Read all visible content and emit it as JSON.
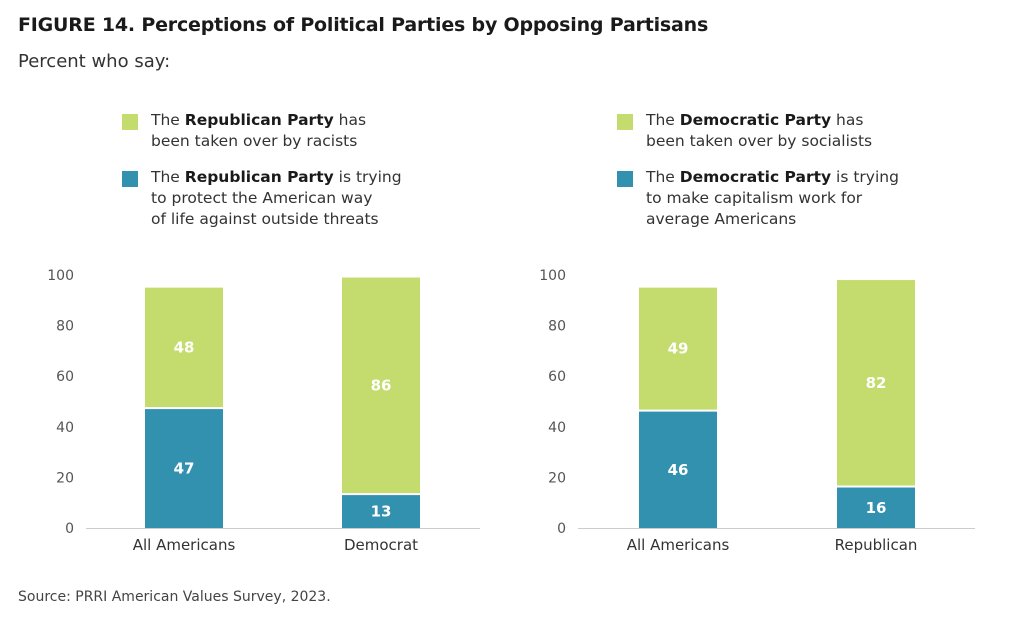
{
  "figure": {
    "title": "FIGURE 14.  Perceptions of Political Parties by Opposing Partisans",
    "subtitle": "Percent who say:",
    "source": "Source: PRRI American Values Survey, 2023."
  },
  "colors": {
    "green": "#c4db6d",
    "blue": "#3391b0",
    "axis": "#cccccc"
  },
  "chart_data": [
    {
      "type": "bar",
      "stacked": true,
      "categories": [
        "All Americans",
        "Democrat"
      ],
      "series": [
        {
          "name": "The Republican Party is trying to protect the American way of life against outside threats",
          "legend": {
            "pre": "The ",
            "bold": "Republican Party",
            "post1": " is trying",
            "line2": "to protect the American way",
            "line3": "of life against outside threats"
          },
          "color": "#3391b0",
          "values": [
            47,
            13
          ]
        },
        {
          "name": "The Republican Party has been taken over by racists",
          "legend": {
            "pre": "The ",
            "bold": "Republican Party",
            "post1": " has",
            "line2": "been taken over by racists"
          },
          "color": "#c4db6d",
          "values": [
            48,
            86
          ]
        }
      ],
      "ylim": [
        0,
        100
      ],
      "yticks": [
        0,
        20,
        40,
        60,
        80,
        100
      ],
      "xlabel": "",
      "ylabel": "",
      "grid": false
    },
    {
      "type": "bar",
      "stacked": true,
      "categories": [
        "All Americans",
        "Republican"
      ],
      "series": [
        {
          "name": "The Democratic Party is trying to make capitalism work for average Americans",
          "legend": {
            "pre": "The ",
            "bold": "Democratic Party",
            "post1": " is trying",
            "line2": "to make capitalism work for",
            "line3": "average Americans"
          },
          "color": "#3391b0",
          "values": [
            46,
            16
          ]
        },
        {
          "name": "The Democratic Party has been taken over by socialists",
          "legend": {
            "pre": "The ",
            "bold": "Democratic Party",
            "post1": " has",
            "line2": "been taken over by socialists"
          },
          "color": "#c4db6d",
          "values": [
            49,
            82
          ]
        }
      ],
      "ylim": [
        0,
        100
      ],
      "yticks": [
        0,
        20,
        40,
        60,
        80,
        100
      ],
      "xlabel": "",
      "ylabel": "",
      "grid": false
    }
  ]
}
